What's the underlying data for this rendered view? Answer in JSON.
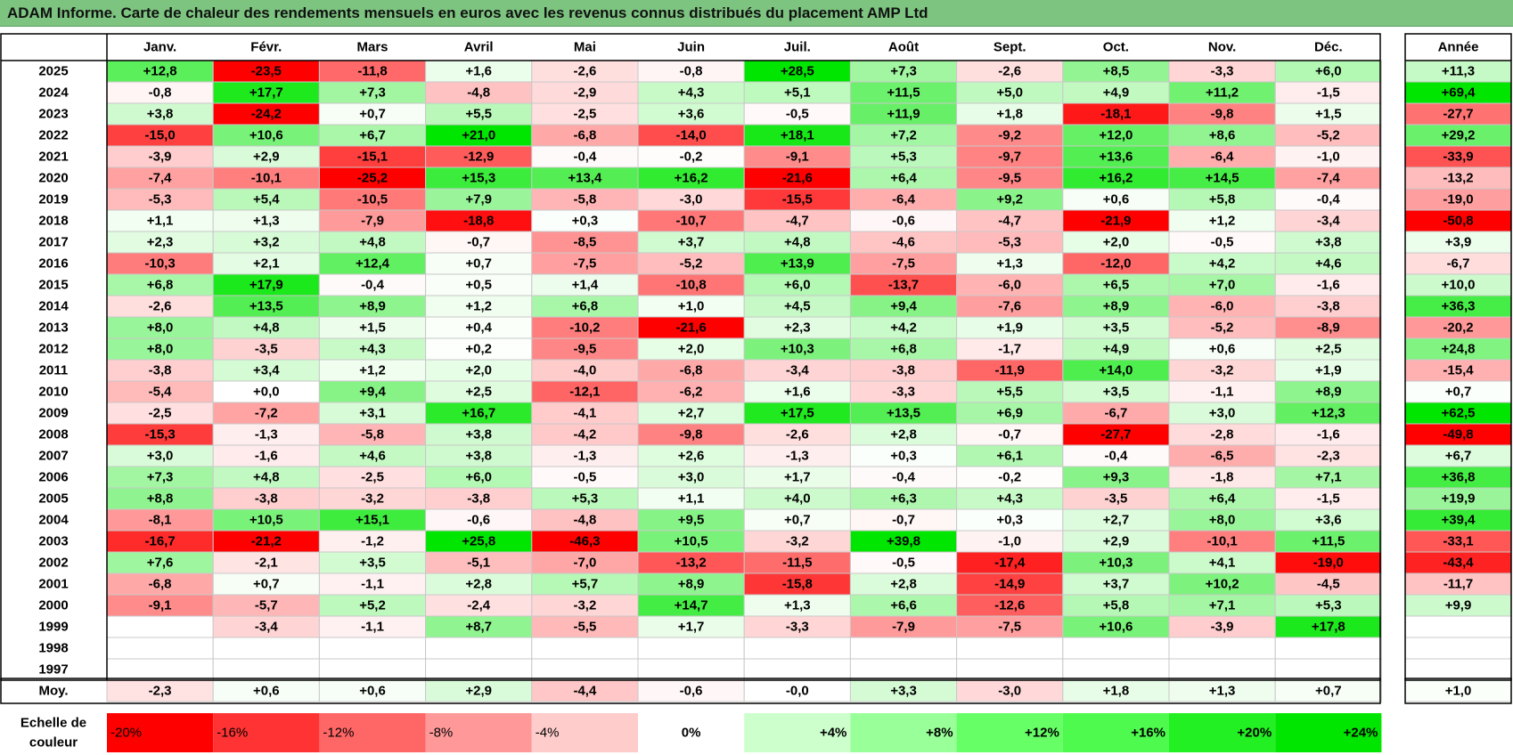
{
  "title": "ADAM Informe. Carte de chaleur des rendements mensuels en euros avec les revenus connus distribués du placement AMP Ltd",
  "chart_data": {
    "type": "heatmap",
    "title": "ADAM Informe. Carte de chaleur des rendements mensuels en euros avec les revenus connus distribués du placement AMP Ltd",
    "months": [
      "Janv.",
      "Févr.",
      "Mars",
      "Avril",
      "Mai",
      "Juin",
      "Juil.",
      "Août",
      "Sept.",
      "Oct.",
      "Nov.",
      "Déc."
    ],
    "year_header": "Année",
    "rows": [
      {
        "year": "2025",
        "values": [
          "+12,8",
          "-23,5",
          "-11,8",
          "+1,6",
          "-2,6",
          "-0,8",
          "+28,5",
          "+7,3",
          "-2,6",
          "+8,5",
          "-3,3",
          "+6,0"
        ],
        "annual": "+11,3"
      },
      {
        "year": "2024",
        "values": [
          "-0,8",
          "+17,7",
          "+7,3",
          "-4,8",
          "-2,9",
          "+4,3",
          "+5,1",
          "+11,5",
          "+5,0",
          "+4,9",
          "+11,2",
          "-1,5"
        ],
        "annual": "+69,4"
      },
      {
        "year": "2023",
        "values": [
          "+3,8",
          "-24,2",
          "+0,7",
          "+5,5",
          "-2,5",
          "+3,6",
          "-0,5",
          "+11,9",
          "+1,8",
          "-18,1",
          "-9,8",
          "+1,5"
        ],
        "annual": "-27,7"
      },
      {
        "year": "2022",
        "values": [
          "-15,0",
          "+10,6",
          "+6,7",
          "+21,0",
          "-6,8",
          "-14,0",
          "+18,1",
          "+7,2",
          "-9,2",
          "+12,0",
          "+8,6",
          "-5,2"
        ],
        "annual": "+29,2"
      },
      {
        "year": "2021",
        "values": [
          "-3,9",
          "+2,9",
          "-15,1",
          "-12,9",
          "-0,4",
          "-0,2",
          "-9,1",
          "+5,3",
          "-9,7",
          "+13,6",
          "-6,4",
          "-1,0"
        ],
        "annual": "-33,9"
      },
      {
        "year": "2020",
        "values": [
          "-7,4",
          "-10,1",
          "-25,2",
          "+15,3",
          "+13,4",
          "+16,2",
          "-21,6",
          "+6,4",
          "-9,5",
          "+16,2",
          "+14,5",
          "-7,4"
        ],
        "annual": "-13,2"
      },
      {
        "year": "2019",
        "values": [
          "-5,3",
          "+5,4",
          "-10,5",
          "+7,9",
          "-5,8",
          "-3,0",
          "-15,5",
          "-6,4",
          "+9,2",
          "+0,6",
          "+5,8",
          "-0,4"
        ],
        "annual": "-19,0"
      },
      {
        "year": "2018",
        "values": [
          "+1,1",
          "+1,3",
          "-7,9",
          "-18,8",
          "+0,3",
          "-10,7",
          "-4,7",
          "-0,6",
          "-4,7",
          "-21,9",
          "+1,2",
          "-3,4"
        ],
        "annual": "-50,8"
      },
      {
        "year": "2017",
        "values": [
          "+2,3",
          "+3,2",
          "+4,8",
          "-0,7",
          "-8,5",
          "+3,7",
          "+4,8",
          "-4,6",
          "-5,3",
          "+2,0",
          "-0,5",
          "+3,8"
        ],
        "annual": "+3,9"
      },
      {
        "year": "2016",
        "values": [
          "-10,3",
          "+2,1",
          "+12,4",
          "+0,7",
          "-7,5",
          "-5,2",
          "+13,9",
          "-7,5",
          "+1,3",
          "-12,0",
          "+4,2",
          "+4,6"
        ],
        "annual": "-6,7"
      },
      {
        "year": "2015",
        "values": [
          "+6,8",
          "+17,9",
          "-0,4",
          "+0,5",
          "+1,4",
          "-10,8",
          "+6,0",
          "-13,7",
          "-6,0",
          "+6,5",
          "+7,0",
          "-1,6"
        ],
        "annual": "+10,0"
      },
      {
        "year": "2014",
        "values": [
          "-2,6",
          "+13,5",
          "+8,9",
          "+1,2",
          "+6,8",
          "+1,0",
          "+4,5",
          "+9,4",
          "-7,6",
          "+8,9",
          "-6,0",
          "-3,8"
        ],
        "annual": "+36,3"
      },
      {
        "year": "2013",
        "values": [
          "+8,0",
          "+4,8",
          "+1,5",
          "+0,4",
          "-10,2",
          "-21,6",
          "+2,3",
          "+4,2",
          "+1,9",
          "+3,5",
          "-5,2",
          "-8,9"
        ],
        "annual": "-20,2"
      },
      {
        "year": "2012",
        "values": [
          "+8,0",
          "-3,5",
          "+4,3",
          "+0,2",
          "-9,5",
          "+2,0",
          "+10,3",
          "+6,8",
          "-1,7",
          "+4,9",
          "+0,6",
          "+2,5"
        ],
        "annual": "+24,8"
      },
      {
        "year": "2011",
        "values": [
          "-3,8",
          "+3,4",
          "+1,2",
          "+2,0",
          "-4,0",
          "-6,8",
          "-3,4",
          "-3,8",
          "-11,9",
          "+14,0",
          "-3,2",
          "+1,9"
        ],
        "annual": "-15,4"
      },
      {
        "year": "2010",
        "values": [
          "-5,4",
          "+0,0",
          "+9,4",
          "+2,5",
          "-12,1",
          "-6,2",
          "+1,6",
          "-3,3",
          "+5,5",
          "+3,5",
          "-1,1",
          "+8,9"
        ],
        "annual": "+0,7"
      },
      {
        "year": "2009",
        "values": [
          "-2,5",
          "-7,2",
          "+3,1",
          "+16,7",
          "-4,1",
          "+2,7",
          "+17,5",
          "+13,5",
          "+6,9",
          "-6,7",
          "+3,0",
          "+12,3"
        ],
        "annual": "+62,5"
      },
      {
        "year": "2008",
        "values": [
          "-15,3",
          "-1,3",
          "-5,8",
          "+3,8",
          "-4,2",
          "-9,8",
          "-2,6",
          "+2,8",
          "-0,7",
          "-27,7",
          "-2,8",
          "-1,6"
        ],
        "annual": "-49,8"
      },
      {
        "year": "2007",
        "values": [
          "+3,0",
          "-1,6",
          "+4,6",
          "+3,8",
          "-1,3",
          "+2,6",
          "-1,3",
          "+0,3",
          "+6,1",
          "-0,4",
          "-6,5",
          "-2,3"
        ],
        "annual": "+6,7"
      },
      {
        "year": "2006",
        "values": [
          "+7,3",
          "+4,8",
          "-2,5",
          "+6,0",
          "-0,5",
          "+3,0",
          "+1,7",
          "-0,4",
          "-0,2",
          "+9,3",
          "-1,8",
          "+7,1"
        ],
        "annual": "+36,8"
      },
      {
        "year": "2005",
        "values": [
          "+8,8",
          "-3,8",
          "-3,2",
          "-3,8",
          "+5,3",
          "+1,1",
          "+4,0",
          "+6,3",
          "+4,3",
          "-3,5",
          "+6,4",
          "-1,5"
        ],
        "annual": "+19,9"
      },
      {
        "year": "2004",
        "values": [
          "-8,1",
          "+10,5",
          "+15,1",
          "-0,6",
          "-4,8",
          "+9,5",
          "+0,7",
          "-0,7",
          "+0,3",
          "+2,7",
          "+8,0",
          "+3,6"
        ],
        "annual": "+39,4"
      },
      {
        "year": "2003",
        "values": [
          "-16,7",
          "-21,2",
          "-1,2",
          "+25,8",
          "-46,3",
          "+10,5",
          "-3,2",
          "+39,8",
          "-1,0",
          "+2,9",
          "-10,1",
          "+11,5"
        ],
        "annual": "-33,1"
      },
      {
        "year": "2002",
        "values": [
          "+7,6",
          "-2,1",
          "+3,5",
          "-5,1",
          "-7,0",
          "-13,2",
          "-11,5",
          "-0,5",
          "-17,4",
          "+10,3",
          "+4,1",
          "-19,0"
        ],
        "annual": "-43,4"
      },
      {
        "year": "2001",
        "values": [
          "-6,8",
          "+0,7",
          "-1,1",
          "+2,8",
          "+5,7",
          "+8,9",
          "-15,8",
          "+2,8",
          "-14,9",
          "+3,7",
          "+10,2",
          "-4,5"
        ],
        "annual": "-11,7"
      },
      {
        "year": "2000",
        "values": [
          "-9,1",
          "-5,7",
          "+5,2",
          "-2,4",
          "-3,2",
          "+14,7",
          "+1,3",
          "+6,6",
          "-12,6",
          "+5,8",
          "+7,1",
          "+5,3"
        ],
        "annual": "+9,9"
      },
      {
        "year": "1999",
        "values": [
          "",
          "-3,4",
          "-1,1",
          "+8,7",
          "-5,5",
          "+1,7",
          "-3,3",
          "-7,9",
          "-7,5",
          "+10,6",
          "-3,9",
          "+17,8"
        ],
        "annual": ""
      },
      {
        "year": "1998",
        "values": [
          "",
          "",
          "",
          "",
          "",
          "",
          "",
          "",
          "",
          "",
          "",
          ""
        ],
        "annual": ""
      },
      {
        "year": "1997",
        "values": [
          "",
          "",
          "",
          "",
          "",
          "",
          "",
          "",
          "",
          "",
          "",
          ""
        ],
        "annual": ""
      }
    ],
    "average": {
      "label": "Moy.",
      "values": [
        "-2,3",
        "+0,6",
        "+0,6",
        "+2,9",
        "-4,4",
        "-0,6",
        "-0,0",
        "+3,3",
        "-3,0",
        "+1,8",
        "+1,3",
        "+0,7"
      ],
      "annual": "+1,0"
    },
    "legend": {
      "label_line1": "Echelle de",
      "label_line2": "couleur",
      "items": [
        {
          "label": "-20%",
          "value": -20,
          "color": "#ff0000"
        },
        {
          "label": "-16%",
          "value": -16,
          "color": "#ff3333"
        },
        {
          "label": "-12%",
          "value": -12,
          "color": "#ff6666"
        },
        {
          "label": "-8%",
          "value": -8,
          "color": "#ff9999"
        },
        {
          "label": "-4%",
          "value": -4,
          "color": "#ffcccc"
        },
        {
          "label": "0%",
          "value": 0,
          "color": "#ffffff"
        },
        {
          "label": "+4%",
          "value": 4,
          "color": "#ccffcc"
        },
        {
          "label": "+8%",
          "value": 8,
          "color": "#99ff99"
        },
        {
          "label": "+12%",
          "value": 12,
          "color": "#66ff66"
        },
        {
          "label": "+16%",
          "value": 16,
          "color": "#4dfa4d"
        },
        {
          "label": "+20%",
          "value": 20,
          "color": "#22f022"
        },
        {
          "label": "+24%",
          "value": 24,
          "color": "#00e600"
        }
      ]
    },
    "colors": {
      "title_bar": "#7cc47f",
      "neg_max": "#ff0000",
      "pos_max": "#00e600",
      "grid": "#c8c8c8",
      "frame": "#000000"
    }
  }
}
